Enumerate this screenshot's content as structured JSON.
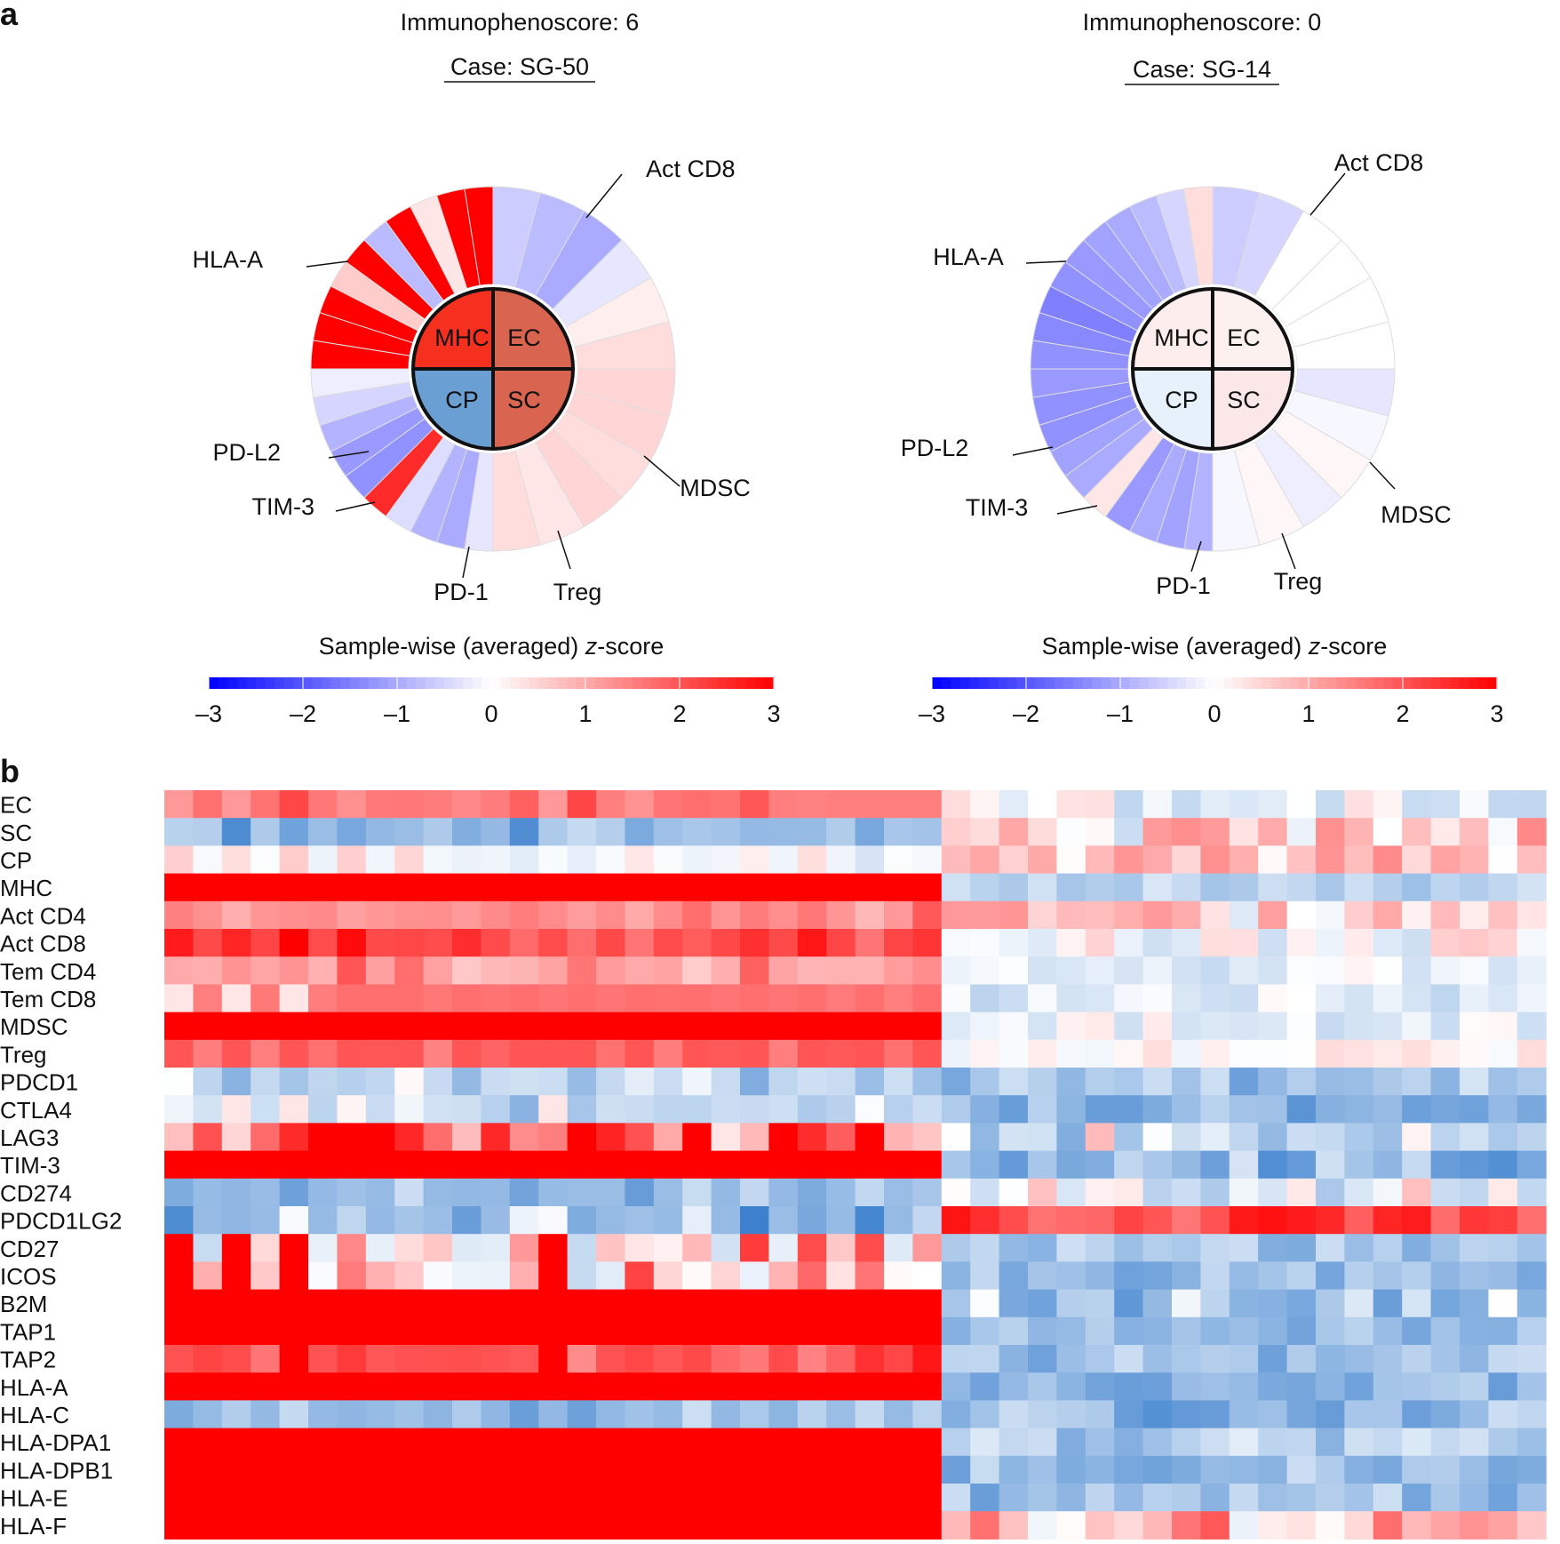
{
  "panel_a": {
    "label": "a",
    "scale_min": -3,
    "scale_max": 3,
    "cases": [
      {
        "score_title": "Immunophenoscore: 6",
        "case_label": "Case: SG-50",
        "outer_labels": [
          "Act CD8",
          "HLA-A",
          "PD-L2",
          "TIM-3",
          "PD-1",
          "Treg",
          "MDSC"
        ],
        "quadrants": [
          {
            "name": "MHC",
            "color": "#f5301f"
          },
          {
            "name": "EC",
            "color": "#d9644f"
          },
          {
            "name": "CP",
            "color": "#6a9fd4"
          },
          {
            "name": "SC",
            "color": "#d9644f"
          }
        ],
        "inner_ring": [
          -0.6,
          -0.8,
          -1.0,
          -0.3,
          0.2,
          0.4,
          0.5,
          0.5,
          0.4,
          0.5,
          0.3,
          0.4
        ],
        "gene_ring": [
          -0.3,
          -1.0,
          -0.9,
          -0.4,
          2.5,
          -1.3,
          -1.2,
          -0.9,
          -0.5,
          -0.2,
          3.0,
          3.0,
          3.0,
          0.6,
          3.0,
          -0.8,
          3.0,
          0.3,
          3.0,
          3.0
        ]
      },
      {
        "score_title": "Immunophenoscore: 0",
        "case_label": "Case: SG-14",
        "outer_labels": [
          "Act CD8",
          "HLA-A",
          "PD-L2",
          "TIM-3",
          "PD-1",
          "Treg",
          "MDSC"
        ],
        "quadrants": [
          {
            "name": "MHC",
            "color": "#fdeeed"
          },
          {
            "name": "EC",
            "color": "#fdf1f0"
          },
          {
            "name": "CP",
            "color": "#e6f1fc"
          },
          {
            "name": "SC",
            "color": "#fbe6e8"
          }
        ],
        "inner_ring": [
          -0.6,
          -0.5,
          0.0,
          0.0,
          0.0,
          0.0,
          -0.3,
          -0.1,
          0.1,
          -0.2,
          0.1,
          -0.1
        ],
        "gene_ring": [
          -0.9,
          -1.1,
          -1.0,
          -1.2,
          0.3,
          -1.0,
          -1.1,
          -1.3,
          -1.3,
          -1.2,
          -1.3,
          -1.4,
          -1.5,
          -1.3,
          -1.2,
          -1.1,
          -1.0,
          -0.8,
          -0.5,
          0.4
        ]
      }
    ],
    "colorbar": {
      "label_prefix": "Sample-wise (averaged) ",
      "label_italic": "z",
      "label_suffix": "-score",
      "ticks": [
        "–3",
        "–2",
        "–1",
        "0",
        "1",
        "2",
        "3"
      ]
    }
  },
  "panel_b": {
    "label": "b"
  },
  "chart_data": {
    "type": "heatmap",
    "rows": [
      "EC",
      "SC",
      "CP",
      "MHC",
      "Act CD4",
      "Act CD8",
      "Tem CD4",
      "Tem CD8",
      "MDSC",
      "Treg",
      "PDCD1",
      "CTLA4",
      "LAG3",
      "TIM-3",
      "CD274",
      "PDCD1LG2",
      "CD27",
      "ICOS",
      "B2M",
      "TAP1",
      "TAP2",
      "HLA-A",
      "HLA-C",
      "HLA-DPA1",
      "HLA-DPB1",
      "HLA-E",
      "HLA-F"
    ],
    "group_sizes": [
      27,
      21
    ],
    "value_range": [
      -3,
      3
    ],
    "row_levels": [
      {
        "left": [
          1.7,
          -0.08,
          1.5,
          0.0,
          0.25,
          0.28,
          1.2,
          0.7
        ],
        "right": [
          -0.2,
          0.12,
          0.15,
          0.5
        ]
      },
      {
        "left": [
          -1.6,
          0.16,
          -1.0,
          0.0,
          -0.6,
          0.32,
          1.8,
          0.15
        ],
        "right": [
          0.35,
          0.18,
          0.0,
          0.4
        ]
      },
      {
        "left": [
          -0.05,
          0.12,
          -0.3,
          0.0,
          0.1,
          0.14,
          0.6,
          0.12
        ],
        "right": [
          0.65,
          0.12,
          0.12,
          0.2
        ]
      },
      {
        "left": [
          3.0,
          0.0,
          3.0,
          0.0,
          0.0,
          0.0,
          3.0,
          0.0
        ],
        "right": [
          -1.0,
          0.08,
          0.05,
          0.15
        ]
      },
      {
        "left": [
          1.4,
          0.1,
          1.2,
          0.0,
          0.3,
          0.25,
          1.5,
          0.3
        ],
        "right": [
          0.55,
          0.17,
          0.35,
          0.5
        ]
      },
      {
        "left": [
          2.1,
          0.13,
          2.2,
          0.0,
          0.4,
          0.3,
          3.0,
          0.1
        ],
        "right": [
          0.0,
          0.12,
          0.1,
          0.6
        ]
      },
      {
        "left": [
          1.2,
          0.15,
          0.8,
          0.0,
          0.2,
          0.22,
          1.0,
          0.2
        ],
        "right": [
          -0.3,
          0.09,
          0.0,
          0.3
        ]
      },
      {
        "left": [
          1.7,
          0.0,
          1.5,
          0.0,
          0.3,
          0.28,
          0.3,
          0.6
        ],
        "right": [
          -0.4,
          0.09,
          0.0,
          0.4
        ]
      },
      {
        "left": [
          3.0,
          0.0,
          2.0,
          0.0,
          0.4,
          0.38,
          1.4,
          0.8
        ],
        "right": [
          -0.25,
          0.09,
          0.3,
          0.3
        ]
      },
      {
        "left": [
          2.0,
          0.0,
          1.4,
          0.0,
          0.3,
          0.3,
          2.0,
          0.7
        ],
        "right": [
          0.1,
          0.06,
          0.0,
          0.5
        ]
      },
      {
        "left": [
          -0.7,
          0.22,
          -0.9,
          0.0,
          0.18,
          0.35,
          1.3,
          0.15
        ],
        "right": [
          -1.3,
          0.12,
          0.0,
          0.6
        ]
      },
      {
        "left": [
          -0.6,
          0.18,
          -1.0,
          0.0,
          0.15,
          0.22,
          0.3,
          0.8
        ],
        "right": [
          -1.6,
          0.14,
          0.0,
          0.9
        ]
      },
      {
        "left": [
          2.0,
          0.3,
          0.0,
          0.0,
          0.1,
          0.5,
          3.0,
          0.4
        ],
        "right": [
          -0.5,
          0.22,
          0.0,
          0.5
        ]
      },
      {
        "left": [
          3.0,
          0.0,
          3.0,
          0.0,
          0.0,
          0.0,
          3.0,
          0.0
        ],
        "right": [
          -1.5,
          0.16,
          0.0,
          0.8
        ]
      },
      {
        "left": [
          -1.4,
          0.12,
          -1.5,
          0.0,
          0.12,
          0.22,
          -0.3,
          0.3
        ],
        "right": [
          -0.3,
          0.19,
          0.0,
          0.4
        ]
      },
      {
        "left": [
          -1.4,
          0.22,
          -1.5,
          0.0,
          0.15,
          0.3,
          -0.1,
          0.5
        ],
        "right": [
          2.2,
          0.1,
          0.3,
          0.8
        ]
      },
      {
        "left": [
          1.0,
          0.3,
          -0.8,
          0.0,
          0.15,
          0.5,
          3.0,
          0.9
        ],
        "right": [
          -1.2,
          0.1,
          0.0,
          0.3
        ]
      },
      {
        "left": [
          1.0,
          0.3,
          -0.5,
          0.0,
          0.15,
          0.55,
          3.0,
          0.9
        ],
        "right": [
          -1.4,
          0.1,
          0.0,
          0.5
        ]
      },
      {
        "left": [
          3.0,
          0.0,
          3.0,
          0.0,
          0.0,
          0.0,
          3.0,
          0.0
        ],
        "right": [
          -1.0,
          0.2,
          0.5,
          0.6
        ]
      },
      {
        "left": [
          3.0,
          0.0,
          3.0,
          0.0,
          0.0,
          0.0,
          3.0,
          0.0
        ],
        "right": [
          -1.5,
          0.1,
          0.0,
          0.3
        ]
      },
      {
        "left": [
          2.2,
          0.15,
          1.5,
          0.0,
          0.3,
          0.45,
          3.0,
          0.4
        ],
        "right": [
          -1.4,
          0.12,
          0.0,
          0.6
        ]
      },
      {
        "left": [
          3.0,
          0.0,
          3.0,
          0.0,
          0.0,
          0.0,
          3.0,
          0.0
        ],
        "right": [
          -1.4,
          0.12,
          0.0,
          0.6
        ]
      },
      {
        "left": [
          -1.4,
          0.12,
          -1.6,
          0.0,
          0.12,
          0.2,
          -0.8,
          0.3
        ],
        "right": [
          -1.5,
          0.15,
          0.0,
          0.9
        ]
      },
      {
        "left": [
          3.0,
          0.0,
          3.0,
          0.0,
          0.0,
          0.0,
          3.0,
          0.0
        ],
        "right": [
          -1.1,
          0.12,
          0.0,
          0.4
        ]
      },
      {
        "left": [
          3.0,
          0.0,
          1.2,
          0.0,
          0.2,
          0.85,
          3.0,
          0.6
        ],
        "right": [
          -1.4,
          0.12,
          0.0,
          0.4
        ]
      },
      {
        "left": [
          3.0,
          0.0,
          3.0,
          0.0,
          0.0,
          0.0,
          3.0,
          0.0
        ],
        "right": [
          -1.4,
          0.12,
          0.0,
          0.5
        ]
      },
      {
        "left": [
          3.0,
          0.0,
          3.0,
          0.0,
          0.0,
          0.0,
          3.0,
          0.0
        ],
        "right": [
          0.9,
          0.2,
          0.5,
          0.8
        ]
      }
    ]
  }
}
